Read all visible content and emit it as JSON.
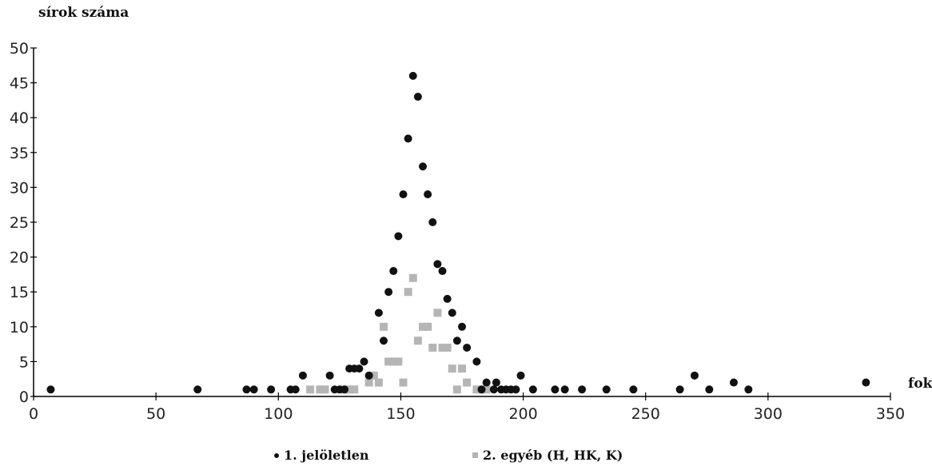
{
  "chart_data": {
    "type": "scatter",
    "ylabel": "sírok száma",
    "xlabel": "fok",
    "xlim": [
      0,
      350
    ],
    "ylim": [
      0,
      50
    ],
    "x_ticks": [
      0,
      50,
      100,
      150,
      200,
      250,
      300,
      350
    ],
    "y_ticks": [
      0,
      5,
      10,
      15,
      20,
      25,
      30,
      35,
      40,
      45,
      50
    ],
    "legend_position": "bottom",
    "series": [
      {
        "name": "1. jelöletlen",
        "marker": "circle",
        "color": "#111111",
        "points": [
          [
            7,
            1
          ],
          [
            67,
            1
          ],
          [
            87,
            1
          ],
          [
            90,
            1
          ],
          [
            97,
            1
          ],
          [
            105,
            1
          ],
          [
            107,
            1
          ],
          [
            110,
            3
          ],
          [
            121,
            3
          ],
          [
            123,
            1
          ],
          [
            125,
            1
          ],
          [
            127,
            1
          ],
          [
            129,
            4
          ],
          [
            131,
            4
          ],
          [
            133,
            4
          ],
          [
            135,
            5
          ],
          [
            137,
            3
          ],
          [
            141,
            12
          ],
          [
            143,
            8
          ],
          [
            145,
            15
          ],
          [
            147,
            18
          ],
          [
            149,
            23
          ],
          [
            151,
            29
          ],
          [
            153,
            37
          ],
          [
            155,
            46
          ],
          [
            157,
            43
          ],
          [
            159,
            33
          ],
          [
            161,
            29
          ],
          [
            163,
            25
          ],
          [
            165,
            19
          ],
          [
            167,
            18
          ],
          [
            169,
            14
          ],
          [
            171,
            12
          ],
          [
            173,
            8
          ],
          [
            175,
            10
          ],
          [
            177,
            7
          ],
          [
            181,
            5
          ],
          [
            183,
            1
          ],
          [
            185,
            2
          ],
          [
            188,
            1
          ],
          [
            189,
            2
          ],
          [
            191,
            1
          ],
          [
            193,
            1
          ],
          [
            195,
            1
          ],
          [
            197,
            1
          ],
          [
            199,
            3
          ],
          [
            204,
            1
          ],
          [
            213,
            1
          ],
          [
            217,
            1
          ],
          [
            224,
            1
          ],
          [
            234,
            1
          ],
          [
            245,
            1
          ],
          [
            264,
            1
          ],
          [
            270,
            3
          ],
          [
            276,
            1
          ],
          [
            286,
            2
          ],
          [
            292,
            1
          ],
          [
            340,
            2
          ]
        ]
      },
      {
        "name": "2. egyéb (H, HK, K)",
        "marker": "square",
        "color": "#b5b5b5",
        "points": [
          [
            113,
            1
          ],
          [
            117,
            1
          ],
          [
            119,
            1
          ],
          [
            127,
            1
          ],
          [
            129,
            1
          ],
          [
            131,
            1
          ],
          [
            137,
            2
          ],
          [
            139,
            3
          ],
          [
            141,
            2
          ],
          [
            143,
            10
          ],
          [
            145,
            5
          ],
          [
            147,
            5
          ],
          [
            149,
            5
          ],
          [
            151,
            2
          ],
          [
            153,
            15
          ],
          [
            155,
            17
          ],
          [
            157,
            8
          ],
          [
            159,
            10
          ],
          [
            161,
            10
          ],
          [
            163,
            7
          ],
          [
            165,
            12
          ],
          [
            167,
            7
          ],
          [
            169,
            7
          ],
          [
            171,
            4
          ],
          [
            173,
            1
          ],
          [
            175,
            4
          ],
          [
            177,
            2
          ],
          [
            181,
            1
          ],
          [
            185,
            1
          ]
        ]
      }
    ]
  }
}
